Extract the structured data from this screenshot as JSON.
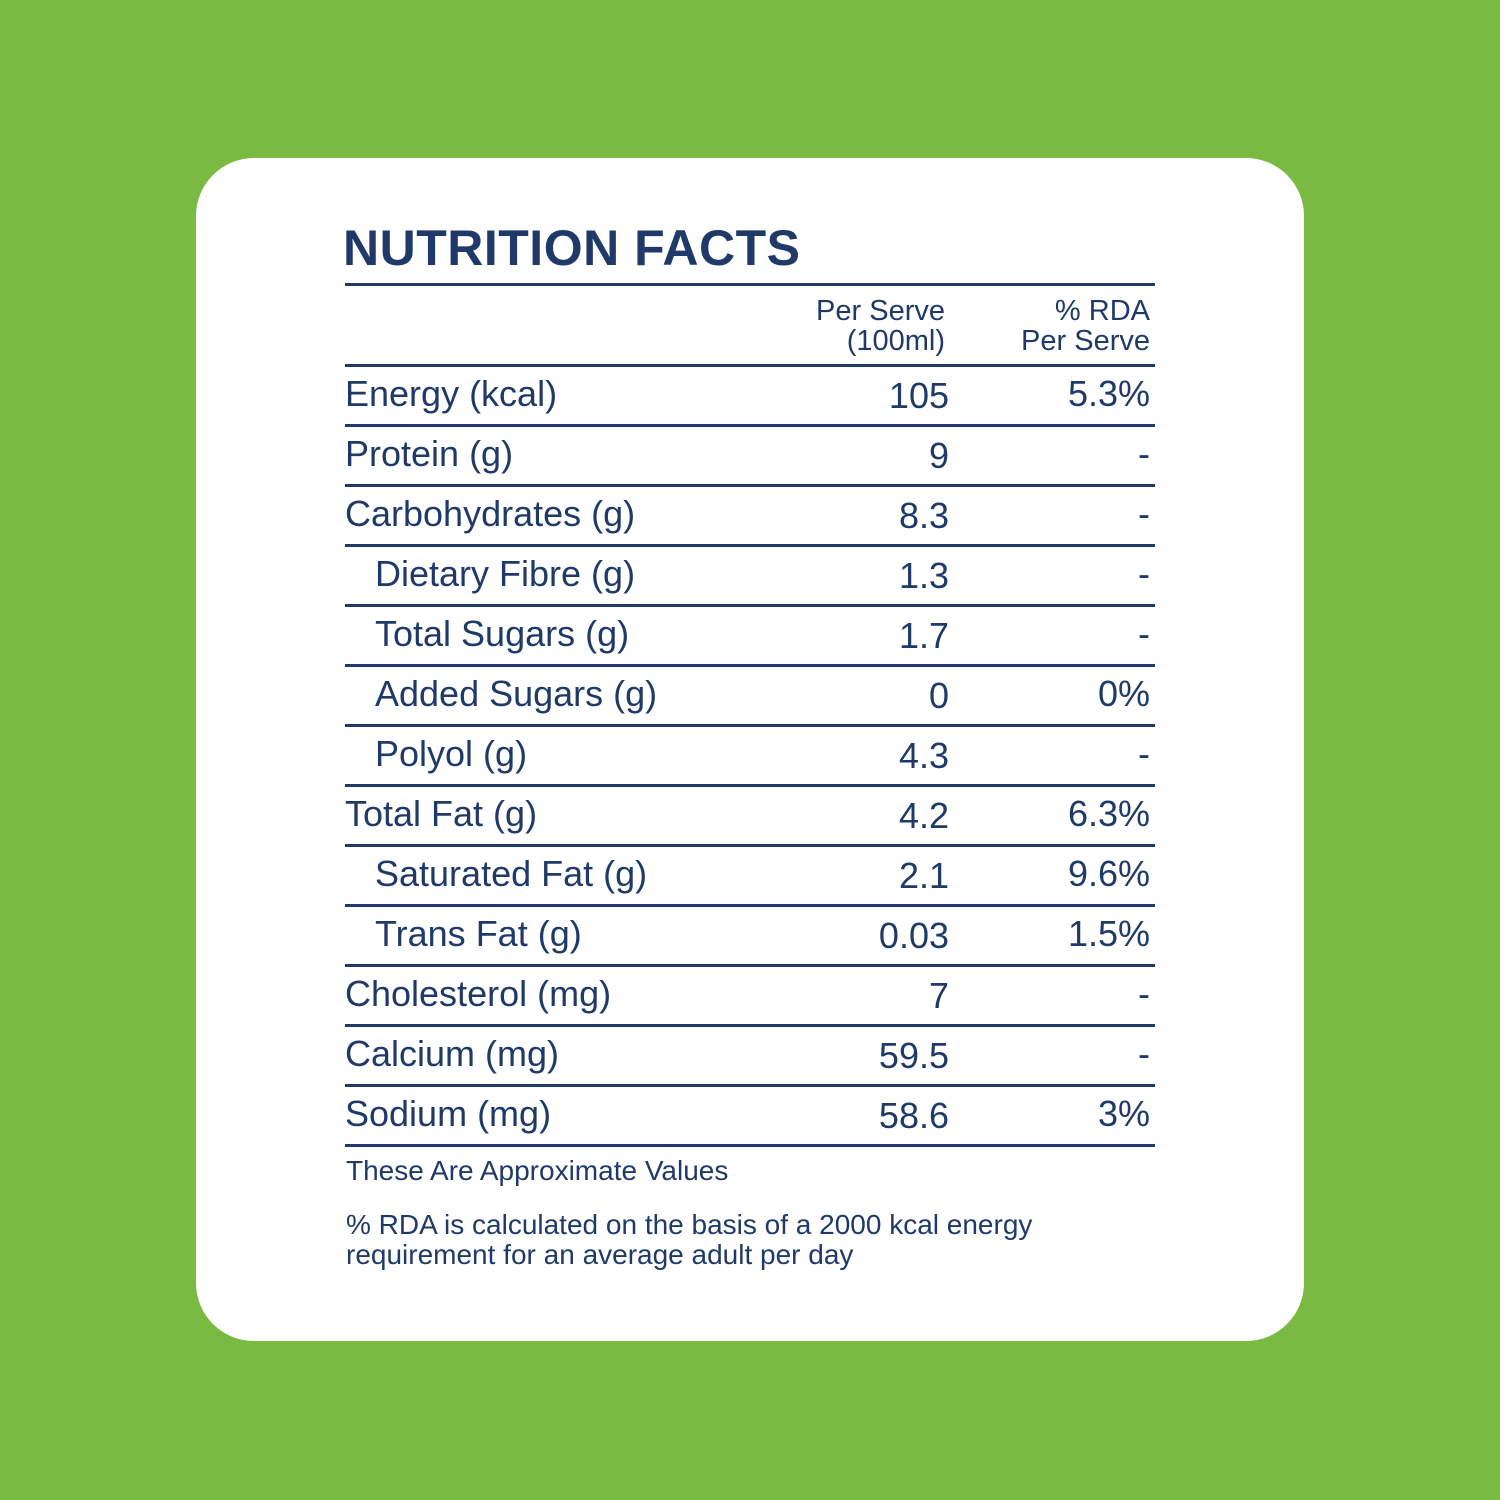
{
  "title": "NUTRITION FACTS",
  "columns": {
    "per_serve_line1": "Per Serve",
    "per_serve_line2": "(100ml)",
    "rda_line1": "% RDA",
    "rda_line2": "Per Serve"
  },
  "rows": [
    {
      "label": "Energy (kcal)",
      "value": "105",
      "rda": "5.3%",
      "indented": false
    },
    {
      "label": "Protein (g)",
      "value": "9",
      "rda": "-",
      "indented": false
    },
    {
      "label": "Carbohydrates (g)",
      "value": "8.3",
      "rda": "-",
      "indented": false
    },
    {
      "label": "Dietary Fibre (g)",
      "value": "1.3",
      "rda": "-",
      "indented": true
    },
    {
      "label": "Total Sugars (g)",
      "value": "1.7",
      "rda": "-",
      "indented": true
    },
    {
      "label": "Added Sugars (g)",
      "value": "0",
      "rda": "0%",
      "indented": true
    },
    {
      "label": "Polyol (g)",
      "value": "4.3",
      "rda": "-",
      "indented": true
    },
    {
      "label": "Total Fat (g)",
      "value": "4.2",
      "rda": "6.3%",
      "indented": false
    },
    {
      "label": "Saturated Fat (g)",
      "value": "2.1",
      "rda": "9.6%",
      "indented": true
    },
    {
      "label": "Trans Fat (g)",
      "value": "0.03",
      "rda": "1.5%",
      "indented": true
    },
    {
      "label": "Cholesterol (mg)",
      "value": "7",
      "rda": "-",
      "indented": false
    },
    {
      "label": "Calcium (mg)",
      "value": "59.5",
      "rda": "-",
      "indented": false
    },
    {
      "label": "Sodium (mg)",
      "value": "58.6",
      "rda": "3%",
      "indented": false
    }
  ],
  "notes": {
    "approx": "These Are Approximate Values",
    "rda_basis": "% RDA is calculated on the basis of a 2000 kcal energy requirement for an average adult per day"
  },
  "colors": {
    "background": "#7aba43",
    "card": "#ffffff",
    "text": "#1f3a68"
  }
}
